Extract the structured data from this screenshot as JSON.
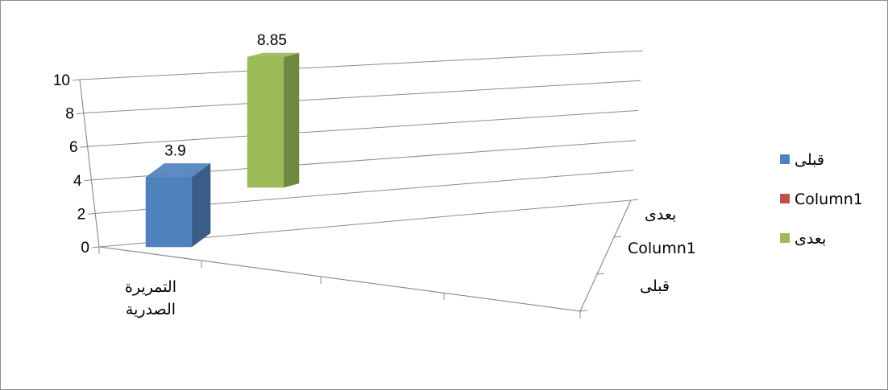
{
  "chart_data": {
    "type": "bar",
    "subtype": "3d-column",
    "title": "",
    "categories": [
      "التمريرة الصدرية"
    ],
    "series": [
      {
        "name": "قبلى",
        "values": [
          3.9
        ],
        "color": "#4f81bd",
        "data_labels": [
          "3.9"
        ]
      },
      {
        "name": "Column1",
        "values": [
          null
        ],
        "color": "#c0504d",
        "data_labels": [
          ""
        ]
      },
      {
        "name": "بعدى",
        "values": [
          8.85
        ],
        "color": "#9bbb59",
        "data_labels": [
          "8.85"
        ]
      }
    ],
    "ylim": [
      0,
      10
    ],
    "y_ticks": [
      "0",
      "2",
      "4",
      "6",
      "8",
      "10"
    ],
    "depth_axis_labels": [
      "قبلى",
      "Column1",
      "بعدى"
    ],
    "category_axis_labels": [
      "التمريرة",
      "الصدرية"
    ],
    "grid": true,
    "legend_position": "right"
  }
}
